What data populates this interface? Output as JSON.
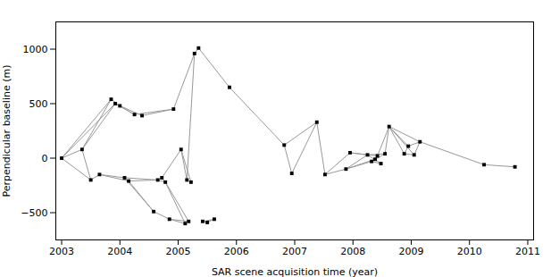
{
  "chart_data": {
    "type": "network",
    "xlabel": "SAR scene acquisition time (year)",
    "ylabel": "Perpendicular baseline (m)",
    "xlim": [
      2002.9,
      2011.1
    ],
    "ylim": [
      -750,
      1250
    ],
    "xticks": [
      2003,
      2004,
      2005,
      2006,
      2007,
      2008,
      2009,
      2010,
      2011
    ],
    "yticks": [
      -500,
      0,
      500,
      1000
    ],
    "series": [
      {
        "type": "line",
        "color": "#999999",
        "segments": [
          [
            [
              2003.0,
              0
            ],
            [
              2003.35,
              80
            ]
          ],
          [
            [
              2003.0,
              0
            ],
            [
              2003.5,
              -200
            ]
          ],
          [
            [
              2003.0,
              0
            ],
            [
              2003.85,
              540
            ]
          ],
          [
            [
              2003.0,
              0
            ],
            [
              2003.92,
              500
            ]
          ],
          [
            [
              2003.35,
              80
            ],
            [
              2003.5,
              -200
            ]
          ],
          [
            [
              2003.35,
              80
            ],
            [
              2003.85,
              540
            ]
          ],
          [
            [
              2003.35,
              80
            ],
            [
              2003.92,
              500
            ]
          ],
          [
            [
              2003.5,
              -200
            ],
            [
              2003.65,
              -150
            ]
          ],
          [
            [
              2003.65,
              -150
            ],
            [
              2004.08,
              -180
            ]
          ],
          [
            [
              2003.65,
              -150
            ],
            [
              2004.15,
              -210
            ]
          ],
          [
            [
              2003.85,
              540
            ],
            [
              2004.0,
              480
            ]
          ],
          [
            [
              2003.92,
              500
            ],
            [
              2004.0,
              480
            ]
          ],
          [
            [
              2003.92,
              500
            ],
            [
              2004.25,
              400
            ]
          ],
          [
            [
              2004.0,
              480
            ],
            [
              2004.25,
              400
            ]
          ],
          [
            [
              2004.0,
              480
            ],
            [
              2004.38,
              390
            ]
          ],
          [
            [
              2004.08,
              -180
            ],
            [
              2004.58,
              -490
            ]
          ],
          [
            [
              2004.08,
              -180
            ],
            [
              2004.65,
              -200
            ]
          ],
          [
            [
              2004.15,
              -210
            ],
            [
              2004.58,
              -490
            ]
          ],
          [
            [
              2004.15,
              -210
            ],
            [
              2004.65,
              -200
            ]
          ],
          [
            [
              2004.25,
              400
            ],
            [
              2004.92,
              450
            ]
          ],
          [
            [
              2004.38,
              390
            ],
            [
              2004.92,
              450
            ]
          ],
          [
            [
              2004.58,
              -490
            ],
            [
              2004.85,
              -560
            ]
          ],
          [
            [
              2004.65,
              -200
            ],
            [
              2004.72,
              -180
            ]
          ],
          [
            [
              2004.65,
              -200
            ],
            [
              2004.78,
              -220
            ]
          ],
          [
            [
              2004.72,
              -180
            ],
            [
              2004.78,
              -220
            ]
          ],
          [
            [
              2004.72,
              -180
            ],
            [
              2005.05,
              80
            ]
          ],
          [
            [
              2004.78,
              -220
            ],
            [
              2005.12,
              -600
            ]
          ],
          [
            [
              2004.78,
              -220
            ],
            [
              2005.18,
              -580
            ]
          ],
          [
            [
              2004.85,
              -560
            ],
            [
              2005.12,
              -600
            ]
          ],
          [
            [
              2004.85,
              -560
            ],
            [
              2005.18,
              -580
            ]
          ],
          [
            [
              2004.92,
              450
            ],
            [
              2005.28,
              960
            ]
          ],
          [
            [
              2005.05,
              80
            ],
            [
              2005.15,
              -200
            ]
          ],
          [
            [
              2005.05,
              80
            ],
            [
              2005.22,
              -220
            ]
          ],
          [
            [
              2005.15,
              -200
            ],
            [
              2005.28,
              960
            ]
          ],
          [
            [
              2005.28,
              960
            ],
            [
              2005.35,
              1010
            ]
          ],
          [
            [
              2005.35,
              1010
            ],
            [
              2005.88,
              650
            ]
          ],
          [
            [
              2005.42,
              -580
            ],
            [
              2005.5,
              -590
            ]
          ],
          [
            [
              2005.42,
              -580
            ],
            [
              2005.62,
              -560
            ]
          ],
          [
            [
              2005.5,
              -590
            ],
            [
              2005.62,
              -560
            ]
          ],
          [
            [
              2005.88,
              650
            ],
            [
              2006.82,
              120
            ]
          ],
          [
            [
              2006.82,
              120
            ],
            [
              2006.95,
              -140
            ]
          ],
          [
            [
              2006.82,
              120
            ],
            [
              2007.38,
              330
            ]
          ],
          [
            [
              2006.95,
              -140
            ],
            [
              2007.38,
              330
            ]
          ],
          [
            [
              2007.38,
              330
            ],
            [
              2007.52,
              -150
            ]
          ],
          [
            [
              2007.52,
              -150
            ],
            [
              2007.88,
              -100
            ]
          ],
          [
            [
              2007.52,
              -150
            ],
            [
              2007.95,
              50
            ]
          ],
          [
            [
              2007.88,
              -100
            ],
            [
              2008.25,
              30
            ]
          ],
          [
            [
              2007.88,
              -100
            ],
            [
              2008.32,
              -30
            ]
          ],
          [
            [
              2007.88,
              -100
            ],
            [
              2008.38,
              -10
            ]
          ],
          [
            [
              2007.95,
              50
            ],
            [
              2008.25,
              30
            ]
          ],
          [
            [
              2007.95,
              50
            ],
            [
              2008.42,
              20
            ]
          ],
          [
            [
              2008.25,
              30
            ],
            [
              2008.48,
              -50
            ]
          ],
          [
            [
              2008.25,
              30
            ],
            [
              2008.55,
              40
            ]
          ],
          [
            [
              2008.32,
              -30
            ],
            [
              2008.48,
              -50
            ]
          ],
          [
            [
              2008.32,
              -30
            ],
            [
              2008.55,
              40
            ]
          ],
          [
            [
              2008.38,
              -10
            ],
            [
              2008.42,
              20
            ]
          ],
          [
            [
              2008.42,
              20
            ],
            [
              2008.62,
              290
            ]
          ],
          [
            [
              2008.55,
              40
            ],
            [
              2008.62,
              290
            ]
          ],
          [
            [
              2008.62,
              290
            ],
            [
              2008.88,
              40
            ]
          ],
          [
            [
              2008.62,
              290
            ],
            [
              2008.95,
              110
            ]
          ],
          [
            [
              2008.62,
              290
            ],
            [
              2009.05,
              30
            ]
          ],
          [
            [
              2008.62,
              290
            ],
            [
              2009.15,
              150
            ]
          ],
          [
            [
              2008.88,
              40
            ],
            [
              2008.95,
              110
            ]
          ],
          [
            [
              2008.88,
              40
            ],
            [
              2009.05,
              30
            ]
          ],
          [
            [
              2008.95,
              110
            ],
            [
              2009.15,
              150
            ]
          ],
          [
            [
              2009.05,
              30
            ],
            [
              2009.15,
              150
            ]
          ],
          [
            [
              2009.15,
              150
            ],
            [
              2010.25,
              -60
            ]
          ],
          [
            [
              2010.25,
              -60
            ],
            [
              2010.78,
              -80
            ]
          ]
        ]
      },
      {
        "type": "scatter",
        "color": "#000000",
        "marker": "square",
        "x": [
          2003.0,
          2003.35,
          2003.5,
          2003.85,
          2003.92,
          2003.65,
          2004.08,
          2004.15,
          2004.0,
          2004.25,
          2004.38,
          2004.58,
          2004.65,
          2004.92,
          2004.85,
          2004.72,
          2004.78,
          2005.05,
          2005.12,
          2005.18,
          2005.28,
          2005.15,
          2005.22,
          2005.35,
          2005.88,
          2005.42,
          2005.5,
          2005.62,
          2006.82,
          2006.95,
          2007.38,
          2007.52,
          2007.88,
          2007.95,
          2008.25,
          2008.32,
          2008.38,
          2008.42,
          2008.48,
          2008.55,
          2008.62,
          2008.88,
          2008.95,
          2009.05,
          2009.15,
          2010.25,
          2010.78
        ],
        "y": [
          0,
          80,
          -200,
          540,
          500,
          -150,
          -180,
          -210,
          480,
          400,
          390,
          -490,
          -200,
          450,
          -560,
          -180,
          -220,
          80,
          -600,
          -580,
          960,
          -200,
          -220,
          1010,
          650,
          -580,
          -590,
          -560,
          120,
          -140,
          330,
          -150,
          -100,
          50,
          30,
          -30,
          -10,
          20,
          -50,
          40,
          290,
          40,
          110,
          30,
          150,
          -60,
          -80
        ]
      }
    ]
  }
}
